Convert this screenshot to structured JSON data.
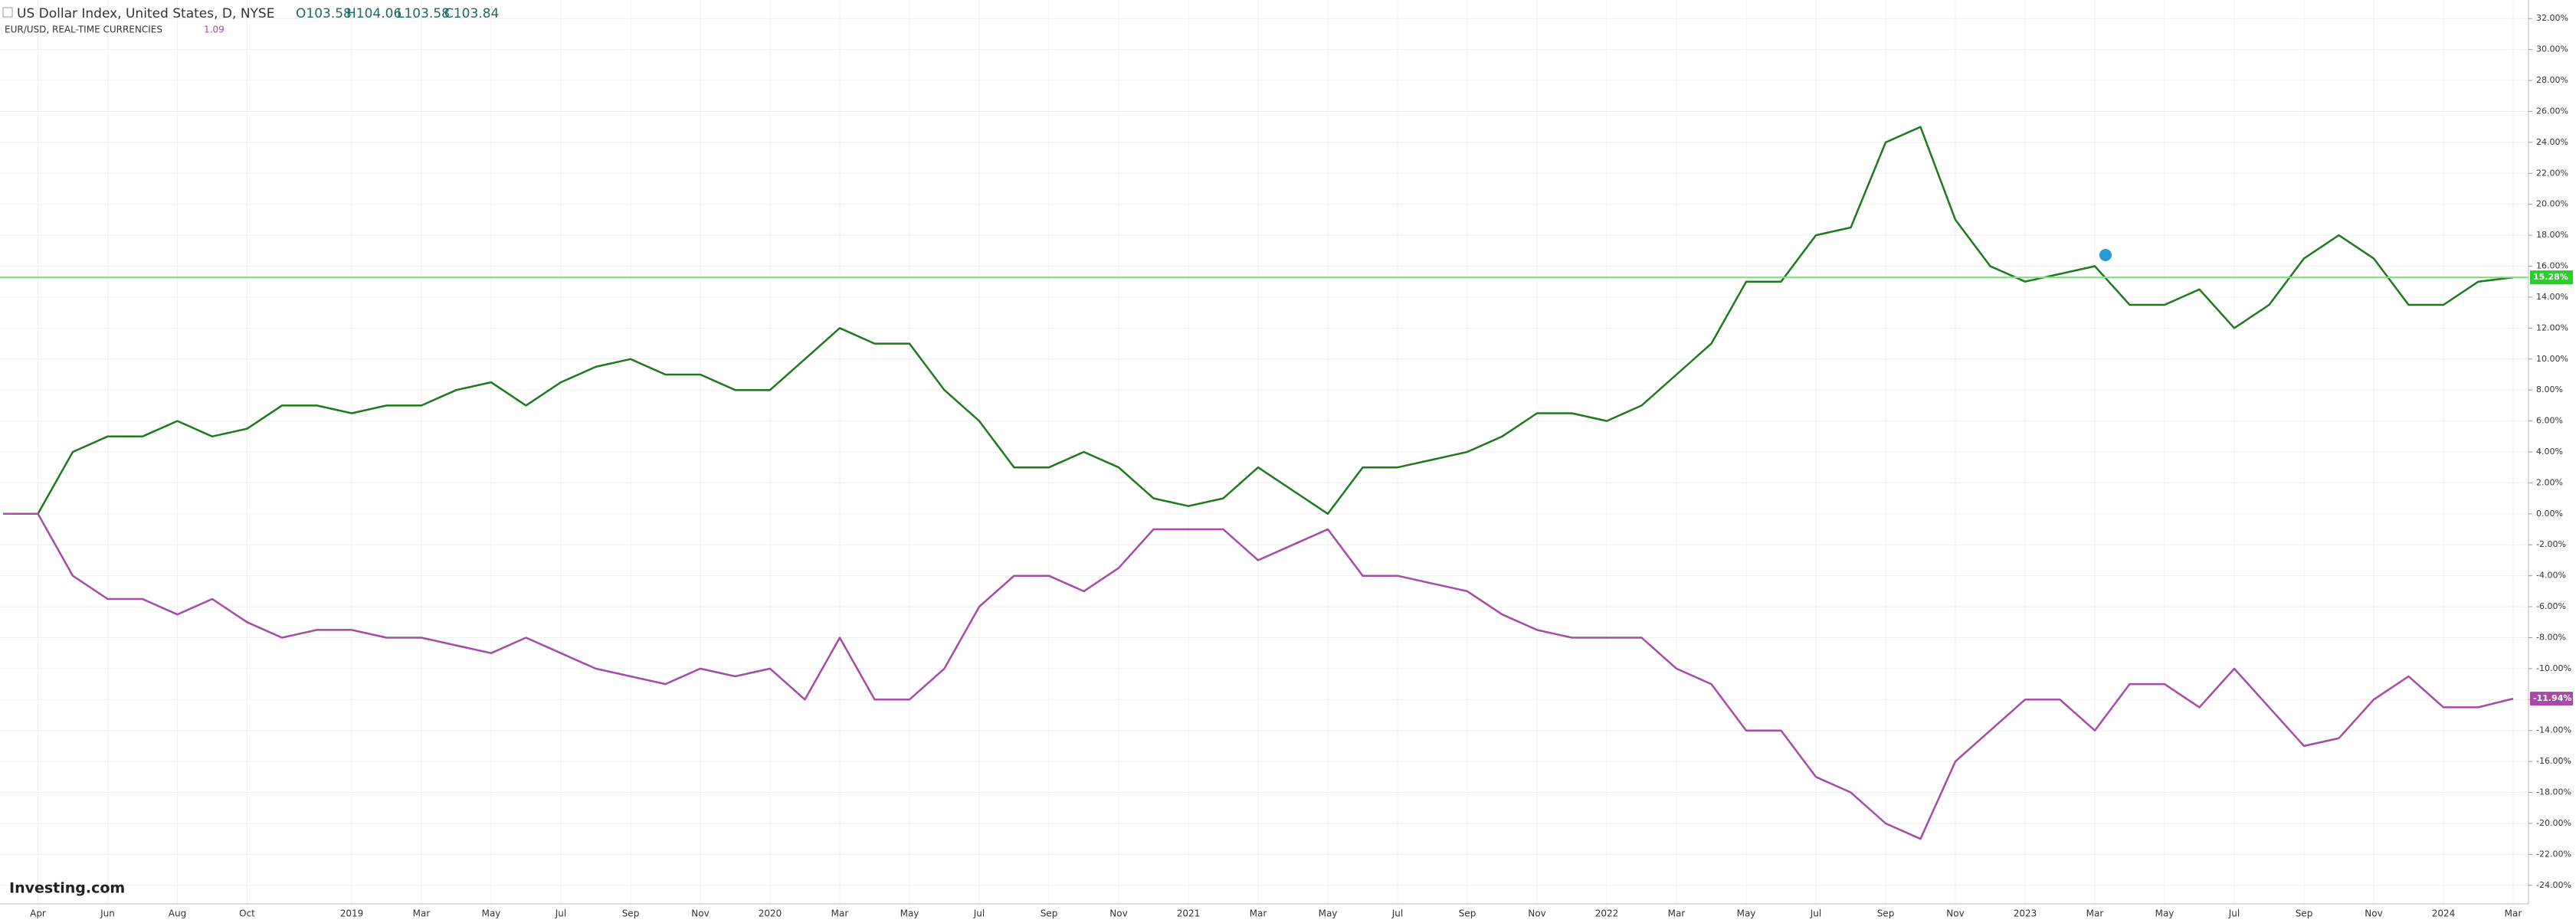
{
  "chart_data": {
    "type": "line",
    "header": {
      "symbol": "US Dollar Index, United States, D, NYSE",
      "open": "O103.58",
      "high": "H104.06",
      "low": "L103.58",
      "close": "C103.84",
      "compare": "EUR/USD, REAL-TIME CURRENCIES",
      "compare_value": "1.09",
      "logo": "Investing.com"
    },
    "categories": [
      null,
      "Apr",
      null,
      "Jun",
      null,
      "Aug",
      null,
      "Oct",
      null,
      null,
      "2019",
      null,
      "Mar",
      null,
      "May",
      null,
      "Jul",
      null,
      "Sep",
      null,
      "Nov",
      null,
      "2020",
      null,
      "Mar",
      null,
      "May",
      null,
      "Jul",
      null,
      "Sep",
      null,
      "Nov",
      null,
      "2021",
      null,
      "Mar",
      null,
      "May",
      null,
      "Jul",
      null,
      "Sep",
      null,
      "Nov",
      null,
      "2022",
      null,
      "Mar",
      null,
      "May",
      null,
      "Jul",
      null,
      "Sep",
      null,
      "Nov",
      null,
      "2023",
      null,
      "Mar",
      null,
      "May",
      null,
      "Jul",
      null,
      "Sep",
      null,
      "Nov",
      null,
      "2024",
      null,
      "Mar"
    ],
    "series": [
      {
        "name": "US Dollar Index",
        "color": "#1f7a1f",
        "values": [
          0,
          0,
          4,
          5,
          5,
          6,
          5,
          5.5,
          7,
          7,
          6.5,
          7,
          7,
          8,
          8.5,
          7,
          8.5,
          9.5,
          10,
          9,
          9,
          8,
          8,
          10,
          12,
          11,
          11,
          8,
          6,
          3,
          3,
          4,
          3,
          1,
          0.5,
          1,
          3,
          1.5,
          0,
          3,
          3,
          3.5,
          4,
          5,
          6.5,
          6.5,
          6,
          7,
          9,
          11,
          15,
          15,
          18,
          18.5,
          24,
          25,
          19,
          16,
          15,
          15.5,
          16,
          13.5,
          13.5,
          14.5,
          12,
          13.5,
          16.5,
          18,
          16.5,
          13.5,
          13.5,
          15,
          15.28
        ]
      },
      {
        "name": "EUR/USD",
        "color": "#a64ca6",
        "values": [
          0,
          0,
          -4,
          -5.5,
          -5.5,
          -6.5,
          -5.5,
          -7,
          -8,
          -7.5,
          -7.5,
          -8,
          -8,
          -8.5,
          -9,
          -8,
          -9,
          -10,
          -10.5,
          -11,
          -10,
          -10.5,
          -10,
          -12,
          -8,
          -12,
          -12,
          -10,
          -6,
          -4,
          -4,
          -5,
          -3.5,
          -1,
          -1,
          -1,
          -3,
          -2,
          -1,
          -4,
          -4,
          -4.5,
          -5,
          -6.5,
          -7.5,
          -8,
          -8,
          -8,
          -10,
          -11,
          -14,
          -14,
          -17,
          -18,
          -20,
          -21,
          -16,
          -14,
          -12,
          -12,
          -14,
          -11,
          -11,
          -12.5,
          -10,
          -12.5,
          -15,
          -14.5,
          -12,
          -10.5,
          -12.5,
          -12.5,
          -11.94
        ]
      }
    ],
    "last_labels": [
      {
        "value": 15.28,
        "label": "15.28%"
      },
      {
        "value": -11.94,
        "label": "-11.94%"
      }
    ],
    "ylim": [
      -25,
      33
    ],
    "yticks": [
      {
        "value": 32,
        "label": "32.00%"
      },
      {
        "value": 30,
        "label": "30.00%"
      },
      {
        "value": 28,
        "label": "28.00%"
      },
      {
        "value": 26,
        "label": "26.00%"
      },
      {
        "value": 24,
        "label": "24.00%"
      },
      {
        "value": 22,
        "label": "22.00%"
      },
      {
        "value": 20,
        "label": "20.00%"
      },
      {
        "value": 18,
        "label": "18.00%"
      },
      {
        "value": 16,
        "label": "16.00%"
      },
      {
        "value": 14,
        "label": "14.00%"
      },
      {
        "value": 12,
        "label": "12.00%"
      },
      {
        "value": 10,
        "label": "10.00%"
      },
      {
        "value": 8,
        "label": "8.00%"
      },
      {
        "value": 6,
        "label": "6.00%"
      },
      {
        "value": 4,
        "label": "4.00%"
      },
      {
        "value": 2,
        "label": "2.00%"
      },
      {
        "value": 0,
        "label": "0.00%"
      },
      {
        "value": -2,
        "label": "-2.00%"
      },
      {
        "value": -4,
        "label": "-4.00%"
      },
      {
        "value": -6,
        "label": "-6.00%"
      },
      {
        "value": -8,
        "label": "-8.00%"
      },
      {
        "value": -10,
        "label": "-10.00%"
      },
      {
        "value": -12,
        "label": "-12.00%"
      },
      {
        "value": -14,
        "label": "-14.00%"
      },
      {
        "value": -16,
        "label": "-16.00%"
      },
      {
        "value": -18,
        "label": "-18.00%"
      },
      {
        "value": -20,
        "label": "-20.00%"
      },
      {
        "value": -22,
        "label": "-22.00%"
      },
      {
        "value": -24,
        "label": "-24.00%"
      }
    ],
    "grid": true
  }
}
